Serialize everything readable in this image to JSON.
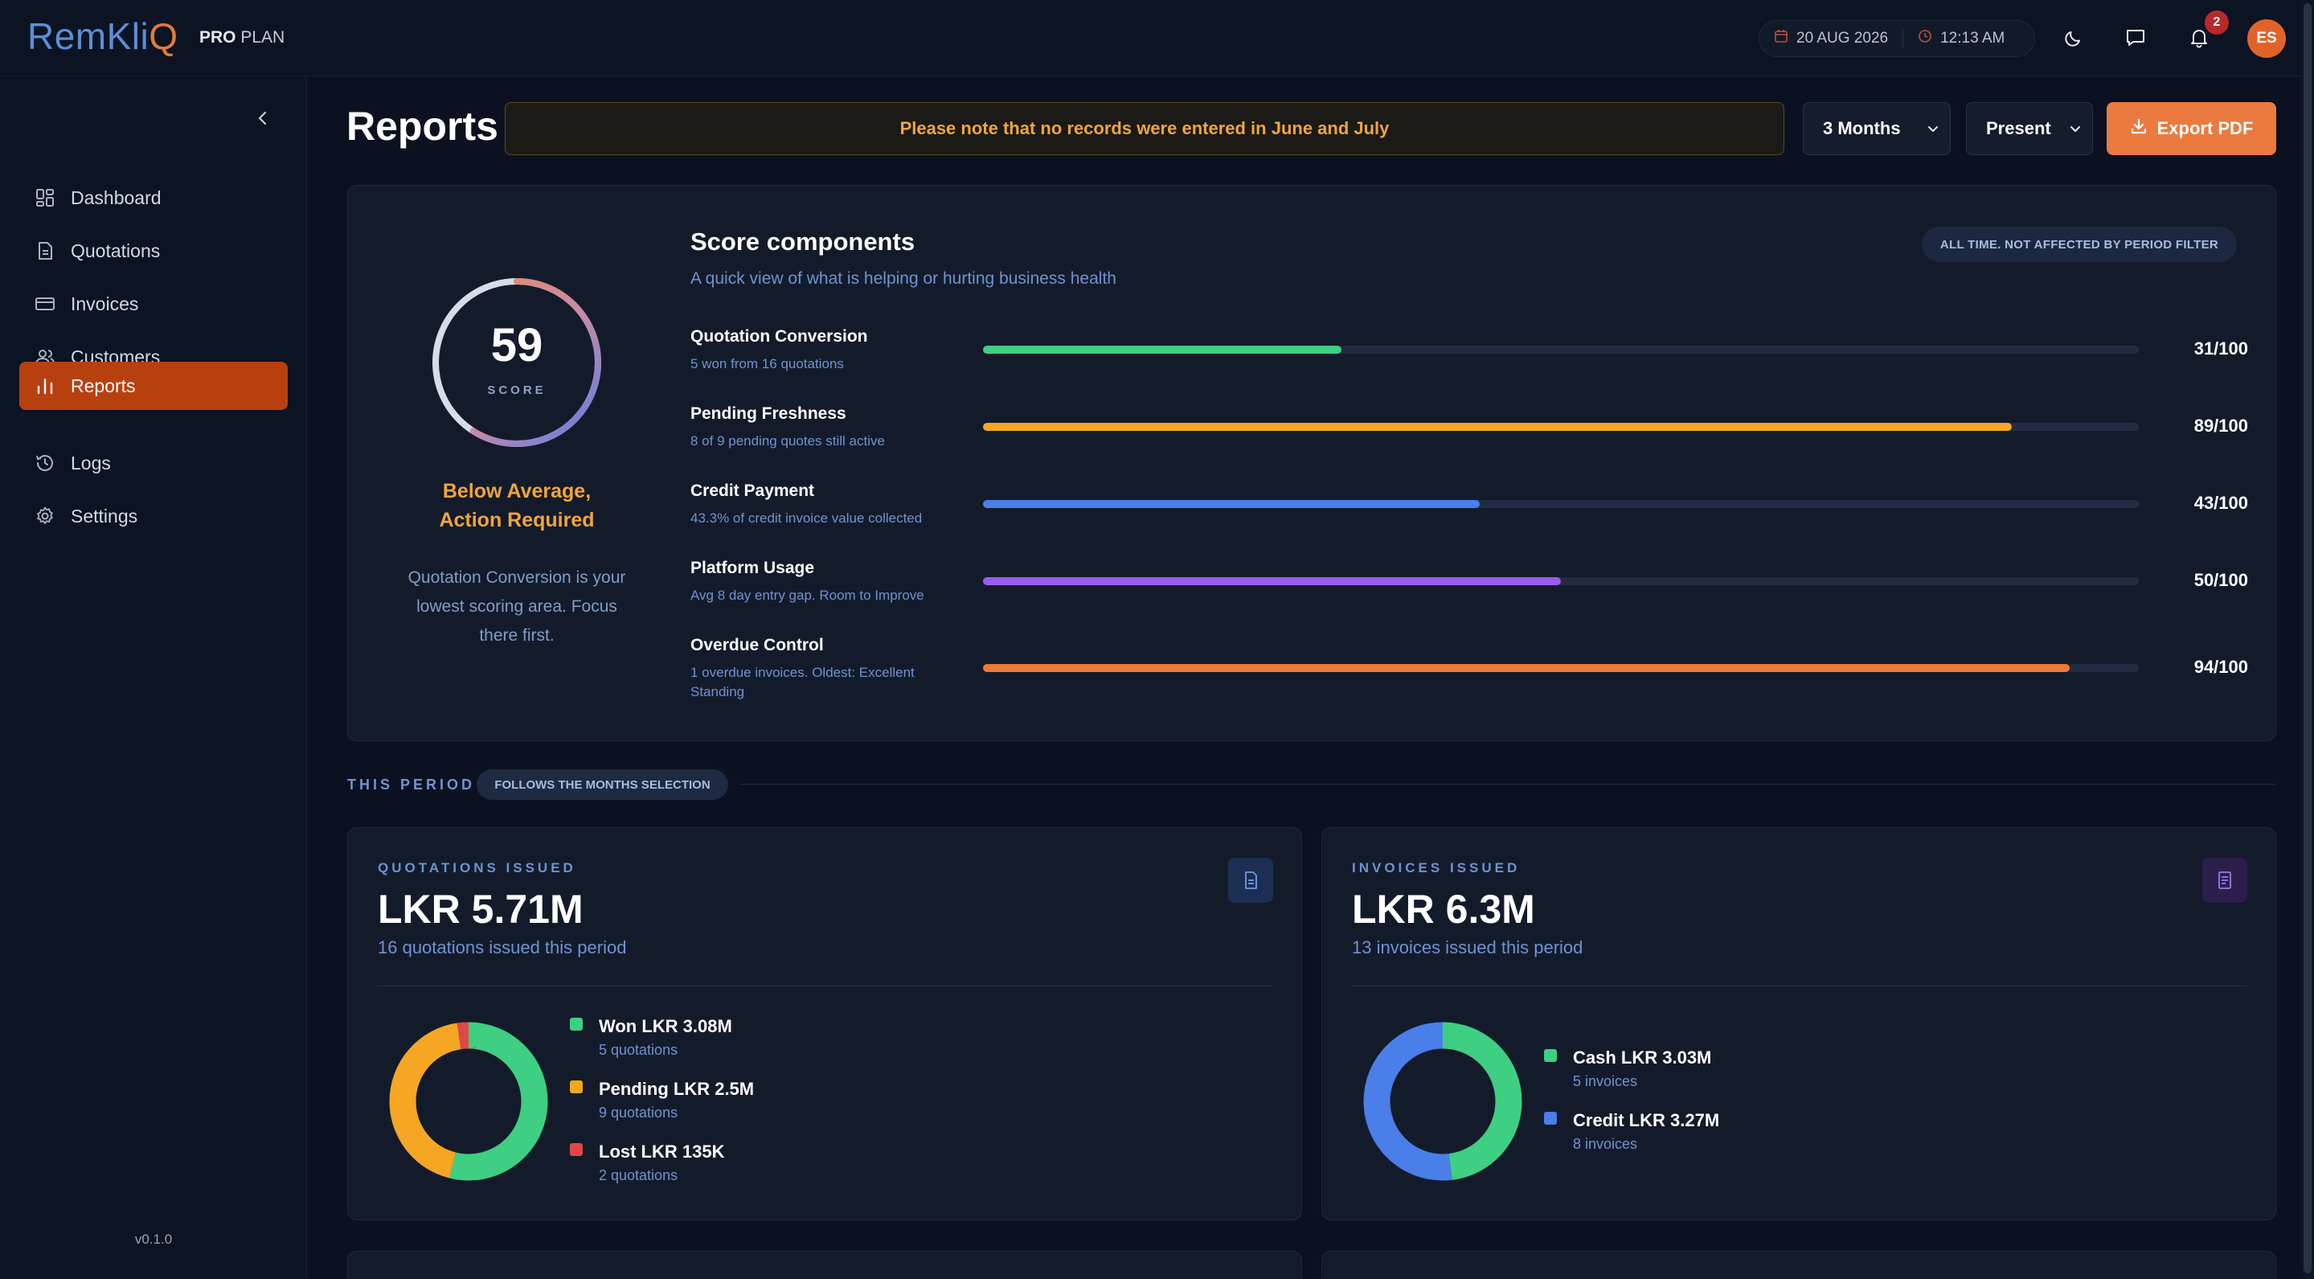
{
  "app": {
    "logo_part1": "RemKli",
    "logo_part2": "Q",
    "plan_bold": "PRO",
    "plan_rest": "PLAN",
    "date": "20 AUG 2026",
    "time": "12:13 AM",
    "notification_count": "2",
    "user_initials": "ES",
    "version": "v0.1.0"
  },
  "sidebar": {
    "items": [
      {
        "label": "Dashboard",
        "icon": "dashboard-icon"
      },
      {
        "label": "Quotations",
        "icon": "document-icon"
      },
      {
        "label": "Invoices",
        "icon": "card-icon"
      },
      {
        "label": "Customers",
        "icon": "users-icon"
      },
      {
        "label": "Reports",
        "icon": "chart-icon",
        "active": true
      },
      {
        "label": "Logs",
        "icon": "history-icon"
      },
      {
        "label": "Settings",
        "icon": "gear-icon"
      }
    ]
  },
  "header": {
    "title": "Reports",
    "notice": "Please note that no records were entered in June and July",
    "months_select": "3 Months",
    "period_select": "Present",
    "export_label": "Export PDF"
  },
  "score": {
    "value": "59",
    "value_num": 59,
    "label": "SCORE",
    "status_line1": "Below Average,",
    "status_line2": "Action Required",
    "advice": "Quotation Conversion is your lowest scoring area. Focus there first.",
    "components_title": "Score components",
    "components_subtitle": "A quick view of what is helping or hurting business health",
    "alltime_badge": "ALL TIME. NOT AFFECTED BY PERIOD FILTER",
    "components": [
      {
        "name": "Quotation Conversion",
        "desc": "5 won from 16 quotations",
        "score": "31/100",
        "value": 31,
        "color": "#3ecf82"
      },
      {
        "name": "Pending Freshness",
        "desc": "8 of 9 pending quotes still active",
        "score": "89/100",
        "value": 89,
        "color": "#f5a623"
      },
      {
        "name": "Credit Payment",
        "desc": "43.3% of credit invoice value collected",
        "score": "43/100",
        "value": 43,
        "color": "#4a7ee8"
      },
      {
        "name": "Platform Usage",
        "desc": "Avg 8 day entry gap. Room to Improve",
        "score": "50/100",
        "value": 50,
        "color": "#9b5cf0"
      },
      {
        "name": "Overdue Control",
        "desc": "1 overdue invoices. Oldest: Excellent Standing",
        "score": "94/100",
        "value": 94,
        "color": "#ee7a3b"
      }
    ]
  },
  "period": {
    "label": "THIS PERIOD",
    "pill": "FOLLOWS THE MONTHS SELECTION"
  },
  "quotations": {
    "kicker": "QUOTATIONS ISSUED",
    "value": "LKR 5.71M",
    "sub": "16 quotations issued this period",
    "legend": [
      {
        "title": "Won LKR 3.08M",
        "sub": "5 quotations",
        "color": "#3ecf82",
        "amount": 3.08
      },
      {
        "title": "Pending LKR 2.5M",
        "sub": "9 quotations",
        "color": "#f5a623",
        "amount": 2.5
      },
      {
        "title": "Lost LKR 135K",
        "sub": "2 quotations",
        "color": "#e04848",
        "amount": 0.135
      }
    ]
  },
  "invoices": {
    "kicker": "INVOICES ISSUED",
    "value": "LKR 6.3M",
    "sub": "13 invoices issued this period",
    "legend": [
      {
        "title": "Cash LKR 3.03M",
        "sub": "5 invoices",
        "color": "#3ecf82",
        "amount": 3.03
      },
      {
        "title": "Credit LKR 3.27M",
        "sub": "8 invoices",
        "color": "#4a7ee8",
        "amount": 3.27
      }
    ]
  }
}
